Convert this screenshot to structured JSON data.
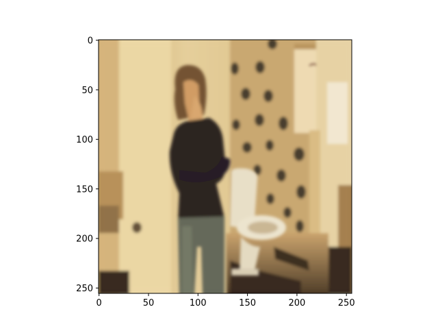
{
  "figure": {
    "x_axis": {
      "ticks": [
        0,
        50,
        100,
        150,
        200,
        250
      ],
      "labels": [
        "0",
        "50",
        "100",
        "150",
        "200",
        "250"
      ],
      "range": [
        0,
        256
      ]
    },
    "y_axis": {
      "ticks": [
        0,
        50,
        100,
        150,
        200,
        250
      ],
      "labels": [
        "0",
        "50",
        "100",
        "150",
        "200",
        "250"
      ],
      "range": [
        0,
        256
      ],
      "inverted": true
    },
    "image_description": {
      "subject": "person with long brown hair in black top and gray jeans, hand raised to face, arms crossed, leaning against wall",
      "scene": "bathroom with dark patterned wallpaper and white toilet",
      "style": "blurred, painterly, warm yellow-brown tones"
    },
    "colors": {
      "wall_left": "#d8bd86",
      "wall_cream": "#efdcb0",
      "wallpaper": "#c6a770",
      "spot": "#3c3328",
      "shirt": "#1a1416",
      "jeans": "#5c6357",
      "hair": "#6b4a2c",
      "skin": "#d6a06a",
      "toilet": "#e9e2cf",
      "floor_dark": "#2a1e14",
      "axis": "#000000"
    }
  }
}
